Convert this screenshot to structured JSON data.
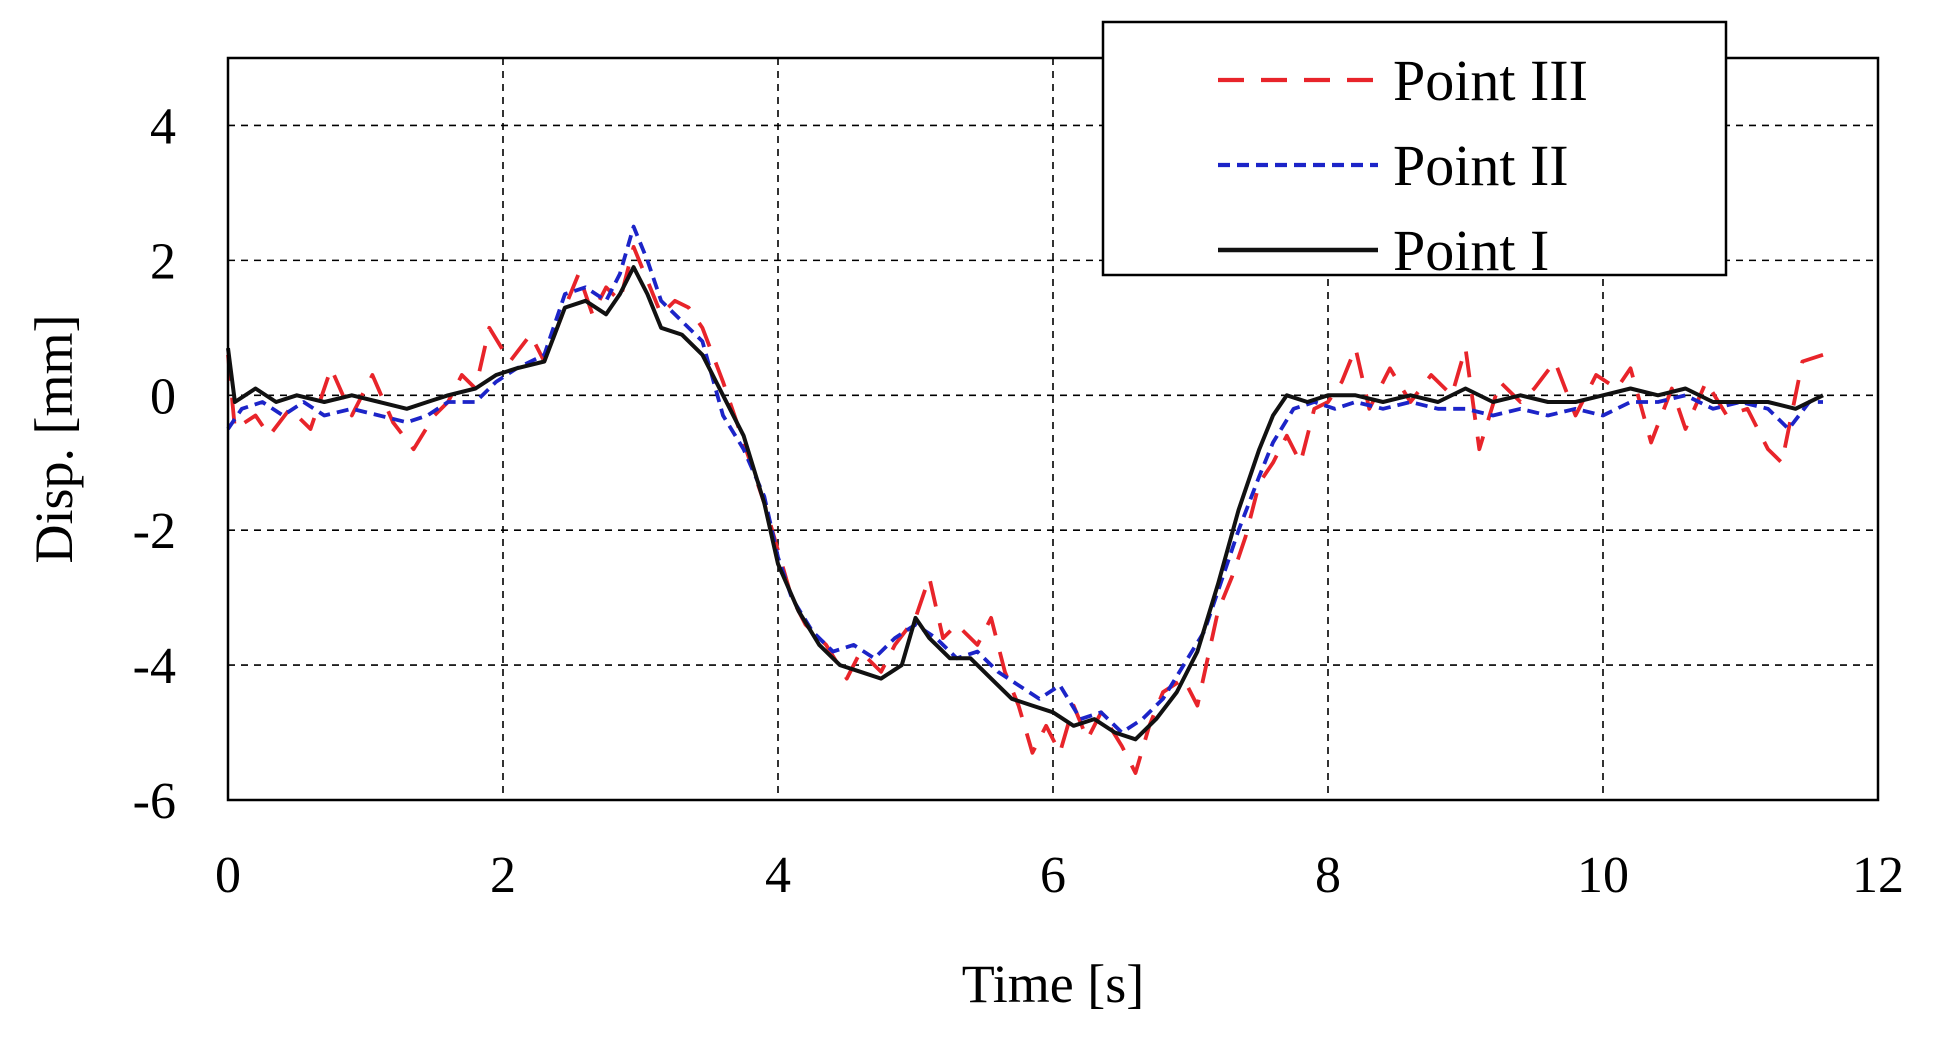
{
  "chart_data": {
    "type": "line",
    "title": "",
    "xlabel": "Time  [s]",
    "ylabel": "Disp. [mm]",
    "xlim": [
      0,
      12
    ],
    "ylim": [
      -6,
      5
    ],
    "xticks": [
      0,
      2,
      4,
      6,
      8,
      10,
      12
    ],
    "yticks": [
      -6,
      -4,
      -2,
      0,
      2,
      4
    ],
    "xtick_labels": [
      "0",
      "2",
      "4",
      "6",
      "8",
      "10",
      "12"
    ],
    "ytick_labels": [
      "-6",
      "-4",
      "-2",
      "0",
      "2",
      "4"
    ],
    "grid": true,
    "legend": "top-right",
    "series": [
      {
        "name": "Point III",
        "color": "#e8242a",
        "dash": "dashed",
        "points": [
          [
            0,
            0.6
          ],
          [
            0.05,
            -0.5
          ],
          [
            0.2,
            -0.3
          ],
          [
            0.3,
            -0.6
          ],
          [
            0.45,
            -0.2
          ],
          [
            0.6,
            -0.5
          ],
          [
            0.75,
            0.4
          ],
          [
            0.9,
            -0.3
          ],
          [
            1.05,
            0.3
          ],
          [
            1.2,
            -0.4
          ],
          [
            1.35,
            -0.8
          ],
          [
            1.5,
            -0.3
          ],
          [
            1.6,
            -0.1
          ],
          [
            1.7,
            0.3
          ],
          [
            1.8,
            0.1
          ],
          [
            1.9,
            1.0
          ],
          [
            2.05,
            0.5
          ],
          [
            2.2,
            0.9
          ],
          [
            2.3,
            0.5
          ],
          [
            2.45,
            1.3
          ],
          [
            2.55,
            1.8
          ],
          [
            2.65,
            1.2
          ],
          [
            2.75,
            1.6
          ],
          [
            2.85,
            1.4
          ],
          [
            2.95,
            2.2
          ],
          [
            3.05,
            1.7
          ],
          [
            3.15,
            1.2
          ],
          [
            3.25,
            1.4
          ],
          [
            3.35,
            1.3
          ],
          [
            3.45,
            1.0
          ],
          [
            3.6,
            0.2
          ],
          [
            3.7,
            -0.4
          ],
          [
            3.8,
            -1.0
          ],
          [
            3.9,
            -1.6
          ],
          [
            4.0,
            -2.3
          ],
          [
            4.1,
            -3.0
          ],
          [
            4.2,
            -3.4
          ],
          [
            4.35,
            -3.7
          ],
          [
            4.5,
            -4.2
          ],
          [
            4.6,
            -3.8
          ],
          [
            4.75,
            -4.1
          ],
          [
            4.85,
            -3.7
          ],
          [
            5.0,
            -3.3
          ],
          [
            5.1,
            -2.7
          ],
          [
            5.2,
            -3.6
          ],
          [
            5.3,
            -3.4
          ],
          [
            5.45,
            -3.7
          ],
          [
            5.55,
            -3.3
          ],
          [
            5.65,
            -4.1
          ],
          [
            5.75,
            -4.6
          ],
          [
            5.85,
            -5.3
          ],
          [
            5.95,
            -4.9
          ],
          [
            6.05,
            -5.3
          ],
          [
            6.15,
            -4.6
          ],
          [
            6.25,
            -5.1
          ],
          [
            6.35,
            -4.7
          ],
          [
            6.5,
            -5.2
          ],
          [
            6.6,
            -5.6
          ],
          [
            6.7,
            -4.9
          ],
          [
            6.8,
            -4.4
          ],
          [
            6.95,
            -4.2
          ],
          [
            7.05,
            -4.6
          ],
          [
            7.2,
            -3.2
          ],
          [
            7.3,
            -2.7
          ],
          [
            7.4,
            -2.1
          ],
          [
            7.5,
            -1.3
          ],
          [
            7.6,
            -1.0
          ],
          [
            7.7,
            -0.6
          ],
          [
            7.8,
            -1.0
          ],
          [
            7.9,
            -0.2
          ],
          [
            8.0,
            -0.1
          ],
          [
            8.1,
            0.2
          ],
          [
            8.2,
            0.7
          ],
          [
            8.3,
            -0.2
          ],
          [
            8.45,
            0.4
          ],
          [
            8.6,
            -0.1
          ],
          [
            8.75,
            0.3
          ],
          [
            8.9,
            0.0
          ],
          [
            9.0,
            0.7
          ],
          [
            9.1,
            -0.8
          ],
          [
            9.25,
            0.2
          ],
          [
            9.4,
            -0.1
          ],
          [
            9.5,
            0.1
          ],
          [
            9.65,
            0.5
          ],
          [
            9.8,
            -0.3
          ],
          [
            9.95,
            0.3
          ],
          [
            10.1,
            0.1
          ],
          [
            10.2,
            0.4
          ],
          [
            10.35,
            -0.7
          ],
          [
            10.5,
            0.1
          ],
          [
            10.6,
            -0.5
          ],
          [
            10.75,
            0.2
          ],
          [
            10.9,
            -0.3
          ],
          [
            11.05,
            -0.2
          ],
          [
            11.2,
            -0.8
          ],
          [
            11.3,
            -1.0
          ],
          [
            11.45,
            0.5
          ],
          [
            11.6,
            0.6
          ]
        ]
      },
      {
        "name": "Point II",
        "color": "#1c24c8",
        "dash": "short-dashed",
        "points": [
          [
            0,
            -0.5
          ],
          [
            0.1,
            -0.2
          ],
          [
            0.25,
            -0.1
          ],
          [
            0.4,
            -0.3
          ],
          [
            0.55,
            -0.1
          ],
          [
            0.7,
            -0.3
          ],
          [
            0.9,
            -0.2
          ],
          [
            1.1,
            -0.3
          ],
          [
            1.3,
            -0.4
          ],
          [
            1.45,
            -0.3
          ],
          [
            1.6,
            -0.1
          ],
          [
            1.8,
            -0.1
          ],
          [
            1.95,
            0.2
          ],
          [
            2.1,
            0.4
          ],
          [
            2.3,
            0.6
          ],
          [
            2.45,
            1.5
          ],
          [
            2.6,
            1.6
          ],
          [
            2.75,
            1.4
          ],
          [
            2.85,
            1.8
          ],
          [
            2.95,
            2.5
          ],
          [
            3.05,
            2.0
          ],
          [
            3.15,
            1.4
          ],
          [
            3.3,
            1.1
          ],
          [
            3.45,
            0.8
          ],
          [
            3.6,
            -0.3
          ],
          [
            3.75,
            -0.8
          ],
          [
            3.9,
            -1.5
          ],
          [
            4.0,
            -2.4
          ],
          [
            4.1,
            -3.0
          ],
          [
            4.25,
            -3.5
          ],
          [
            4.4,
            -3.8
          ],
          [
            4.55,
            -3.7
          ],
          [
            4.7,
            -3.9
          ],
          [
            4.85,
            -3.6
          ],
          [
            5.0,
            -3.4
          ],
          [
            5.15,
            -3.6
          ],
          [
            5.3,
            -3.9
          ],
          [
            5.45,
            -3.8
          ],
          [
            5.6,
            -4.1
          ],
          [
            5.75,
            -4.3
          ],
          [
            5.9,
            -4.5
          ],
          [
            6.05,
            -4.3
          ],
          [
            6.2,
            -4.8
          ],
          [
            6.35,
            -4.7
          ],
          [
            6.5,
            -5.0
          ],
          [
            6.65,
            -4.8
          ],
          [
            6.8,
            -4.5
          ],
          [
            6.95,
            -4.0
          ],
          [
            7.1,
            -3.5
          ],
          [
            7.25,
            -2.6
          ],
          [
            7.35,
            -2.0
          ],
          [
            7.5,
            -1.2
          ],
          [
            7.6,
            -0.7
          ],
          [
            7.75,
            -0.2
          ],
          [
            7.9,
            -0.1
          ],
          [
            8.05,
            -0.2
          ],
          [
            8.2,
            -0.1
          ],
          [
            8.4,
            -0.2
          ],
          [
            8.6,
            -0.1
          ],
          [
            8.8,
            -0.2
          ],
          [
            9.0,
            -0.2
          ],
          [
            9.2,
            -0.3
          ],
          [
            9.4,
            -0.2
          ],
          [
            9.6,
            -0.3
          ],
          [
            9.8,
            -0.2
          ],
          [
            10.0,
            -0.3
          ],
          [
            10.2,
            -0.1
          ],
          [
            10.4,
            -0.1
          ],
          [
            10.6,
            0.0
          ],
          [
            10.8,
            -0.2
          ],
          [
            11.0,
            -0.1
          ],
          [
            11.2,
            -0.2
          ],
          [
            11.35,
            -0.5
          ],
          [
            11.5,
            -0.1
          ],
          [
            11.6,
            -0.1
          ]
        ]
      },
      {
        "name": "Point I",
        "color": "#111111",
        "dash": "solid",
        "points": [
          [
            0,
            0.7
          ],
          [
            0.05,
            -0.1
          ],
          [
            0.2,
            0.1
          ],
          [
            0.35,
            -0.1
          ],
          [
            0.5,
            0.0
          ],
          [
            0.7,
            -0.1
          ],
          [
            0.9,
            0.0
          ],
          [
            1.1,
            -0.1
          ],
          [
            1.3,
            -0.2
          ],
          [
            1.45,
            -0.1
          ],
          [
            1.6,
            0.0
          ],
          [
            1.8,
            0.1
          ],
          [
            1.95,
            0.3
          ],
          [
            2.1,
            0.4
          ],
          [
            2.3,
            0.5
          ],
          [
            2.45,
            1.3
          ],
          [
            2.6,
            1.4
          ],
          [
            2.75,
            1.2
          ],
          [
            2.85,
            1.5
          ],
          [
            2.95,
            1.9
          ],
          [
            3.05,
            1.5
          ],
          [
            3.15,
            1.0
          ],
          [
            3.3,
            0.9
          ],
          [
            3.45,
            0.6
          ],
          [
            3.6,
            0.0
          ],
          [
            3.75,
            -0.6
          ],
          [
            3.9,
            -1.6
          ],
          [
            4.0,
            -2.5
          ],
          [
            4.15,
            -3.2
          ],
          [
            4.3,
            -3.7
          ],
          [
            4.45,
            -4.0
          ],
          [
            4.6,
            -4.1
          ],
          [
            4.75,
            -4.2
          ],
          [
            4.9,
            -4.0
          ],
          [
            5.0,
            -3.3
          ],
          [
            5.1,
            -3.6
          ],
          [
            5.25,
            -3.9
          ],
          [
            5.4,
            -3.9
          ],
          [
            5.55,
            -4.2
          ],
          [
            5.7,
            -4.5
          ],
          [
            5.85,
            -4.6
          ],
          [
            6.0,
            -4.7
          ],
          [
            6.15,
            -4.9
          ],
          [
            6.3,
            -4.8
          ],
          [
            6.45,
            -5.0
          ],
          [
            6.6,
            -5.1
          ],
          [
            6.75,
            -4.8
          ],
          [
            6.9,
            -4.4
          ],
          [
            7.05,
            -3.8
          ],
          [
            7.2,
            -2.8
          ],
          [
            7.35,
            -1.7
          ],
          [
            7.5,
            -0.8
          ],
          [
            7.6,
            -0.3
          ],
          [
            7.7,
            0.0
          ],
          [
            7.85,
            -0.1
          ],
          [
            8.0,
            0.0
          ],
          [
            8.2,
            0.0
          ],
          [
            8.4,
            -0.1
          ],
          [
            8.6,
            0.0
          ],
          [
            8.8,
            -0.1
          ],
          [
            9.0,
            0.1
          ],
          [
            9.2,
            -0.1
          ],
          [
            9.4,
            0.0
          ],
          [
            9.6,
            -0.1
          ],
          [
            9.8,
            -0.1
          ],
          [
            10.0,
            0.0
          ],
          [
            10.2,
            0.1
          ],
          [
            10.4,
            0.0
          ],
          [
            10.6,
            0.1
          ],
          [
            10.8,
            -0.1
          ],
          [
            11.0,
            -0.1
          ],
          [
            11.2,
            -0.1
          ],
          [
            11.4,
            -0.2
          ],
          [
            11.6,
            0.0
          ]
        ]
      }
    ]
  }
}
